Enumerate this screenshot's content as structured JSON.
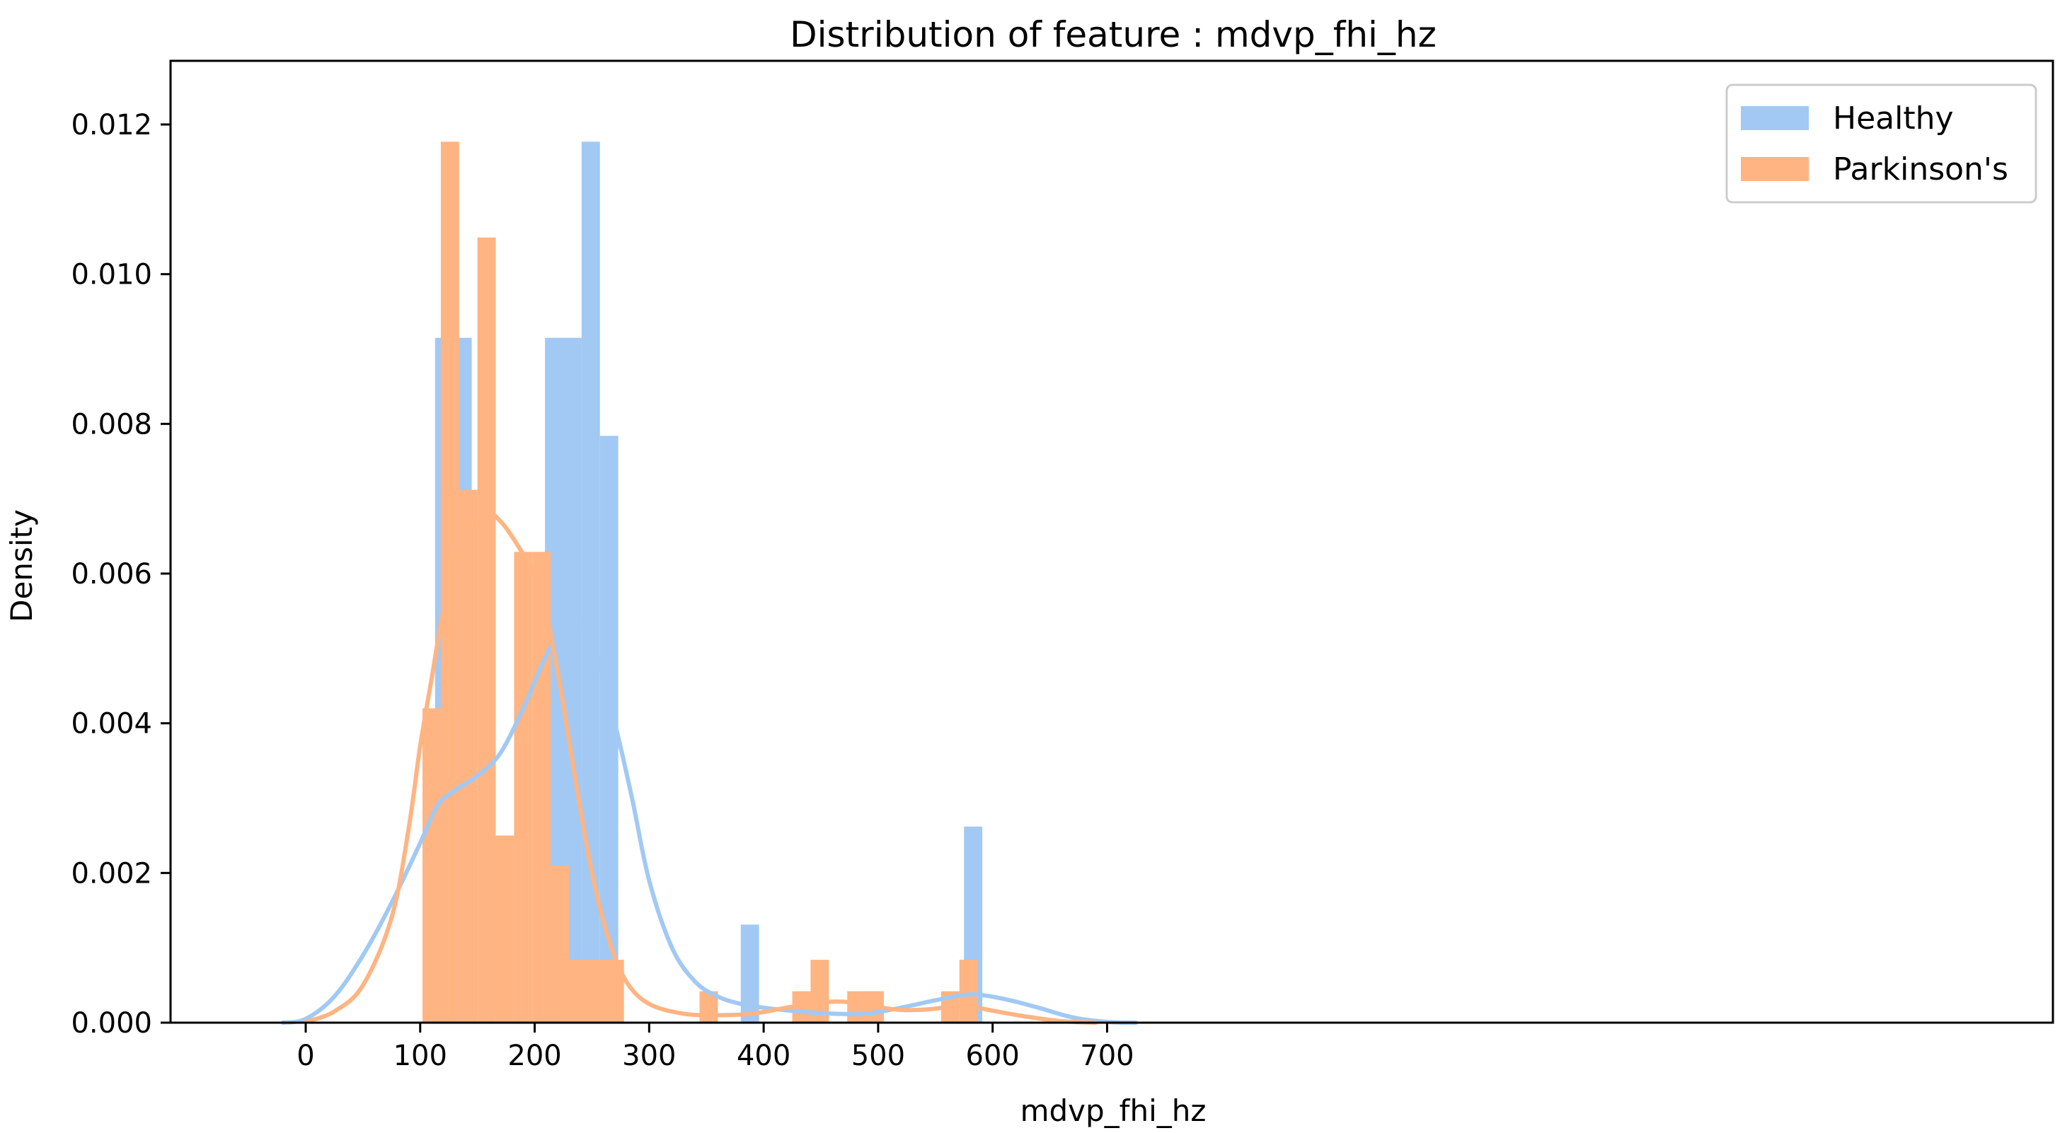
{
  "chart_data": {
    "type": "bar",
    "title": "Distribution of feature : mdvp_fhi_hz",
    "xlabel": "mdvp_fhi_hz",
    "ylabel": "Density",
    "xlim": [
      -60,
      760
    ],
    "ylim": [
      0,
      0.0121
    ],
    "xticks": [
      0,
      100,
      200,
      300,
      400,
      500,
      600,
      700
    ],
    "xtick_labels": [
      "0",
      "100",
      "200",
      "300",
      "400",
      "500",
      "600",
      "700"
    ],
    "yticks": [
      0,
      0.002,
      0.004,
      0.006,
      0.008,
      0.01,
      0.012
    ],
    "ytick_labels": [
      "0.000",
      "0.002",
      "0.004",
      "0.006",
      "0.008",
      "0.010",
      "0.012"
    ],
    "grid": false,
    "legend_position": "top-right",
    "series": [
      {
        "name": "Healthy",
        "color": "#a1c9f4",
        "bins": [
          {
            "x0": 113,
            "x1": 145,
            "y": 0.00915
          },
          {
            "x0": 145,
            "x1": 177,
            "y": 0.0
          },
          {
            "x0": 177,
            "x1": 209,
            "y": 0.0
          },
          {
            "x0": 209,
            "x1": 241,
            "y": 0.00915
          },
          {
            "x0": 241,
            "x1": 257,
            "y": 0.01177
          },
          {
            "x0": 257,
            "x1": 273,
            "y": 0.00784
          },
          {
            "x0": 273,
            "x1": 380,
            "y": 0.0
          },
          {
            "x0": 380,
            "x1": 396,
            "y": 0.00131
          },
          {
            "x0": 575,
            "x1": 591,
            "y": 0.00262
          }
        ],
        "kde": [
          [
            -20,
            0.0
          ],
          [
            0,
            5e-05
          ],
          [
            25,
            0.00035
          ],
          [
            50,
            0.0009
          ],
          [
            75,
            0.0016
          ],
          [
            100,
            0.0024
          ],
          [
            115,
            0.0029
          ],
          [
            130,
            0.0031
          ],
          [
            150,
            0.0033
          ],
          [
            170,
            0.0036
          ],
          [
            190,
            0.0042
          ],
          [
            210,
            0.0049
          ],
          [
            230,
            0.0054
          ],
          [
            250,
            0.0051
          ],
          [
            270,
            0.004
          ],
          [
            285,
            0.003
          ],
          [
            300,
            0.0019
          ],
          [
            320,
            0.001
          ],
          [
            340,
            0.00055
          ],
          [
            360,
            0.00035
          ],
          [
            380,
            0.00025
          ],
          [
            400,
            0.0002
          ],
          [
            430,
            0.00015
          ],
          [
            460,
            0.00012
          ],
          [
            490,
            0.00012
          ],
          [
            520,
            0.0002
          ],
          [
            550,
            0.0003
          ],
          [
            575,
            0.00037
          ],
          [
            590,
            0.00037
          ],
          [
            615,
            0.0003
          ],
          [
            640,
            0.0002
          ],
          [
            670,
            7e-05
          ],
          [
            700,
            1e-05
          ],
          [
            725,
            0.0
          ]
        ]
      },
      {
        "name": "Parkinson's",
        "color": "#ffb482",
        "bins": [
          {
            "x0": 102,
            "x1": 118,
            "y": 0.0042
          },
          {
            "x0": 118,
            "x1": 134,
            "y": 0.01177
          },
          {
            "x0": 134,
            "x1": 150,
            "y": 0.00712
          },
          {
            "x0": 150,
            "x1": 166,
            "y": 0.01049
          },
          {
            "x0": 166,
            "x1": 182,
            "y": 0.0025
          },
          {
            "x0": 182,
            "x1": 198,
            "y": 0.00629
          },
          {
            "x0": 198,
            "x1": 214,
            "y": 0.00629
          },
          {
            "x0": 214,
            "x1": 230,
            "y": 0.0021
          },
          {
            "x0": 230,
            "x1": 262,
            "y": 0.00084
          },
          {
            "x0": 262,
            "x1": 278,
            "y": 0.00084
          },
          {
            "x0": 344,
            "x1": 360,
            "y": 0.00042
          },
          {
            "x0": 425,
            "x1": 441,
            "y": 0.00042
          },
          {
            "x0": 441,
            "x1": 457,
            "y": 0.00084
          },
          {
            "x0": 473,
            "x1": 505,
            "y": 0.00042
          },
          {
            "x0": 555,
            "x1": 571,
            "y": 0.00042
          },
          {
            "x0": 571,
            "x1": 587,
            "y": 0.00084
          }
        ],
        "kde": [
          [
            0,
            1e-05
          ],
          [
            25,
            0.00015
          ],
          [
            50,
            0.0005
          ],
          [
            75,
            0.0014
          ],
          [
            90,
            0.0026
          ],
          [
            100,
            0.0037
          ],
          [
            110,
            0.0046
          ],
          [
            120,
            0.0055
          ],
          [
            130,
            0.0061
          ],
          [
            145,
            0.0066
          ],
          [
            160,
            0.0068
          ],
          [
            170,
            0.0067
          ],
          [
            180,
            0.0065
          ],
          [
            192,
            0.0062
          ],
          [
            205,
            0.0058
          ],
          [
            220,
            0.0047
          ],
          [
            235,
            0.0033
          ],
          [
            250,
            0.002
          ],
          [
            265,
            0.0011
          ],
          [
            280,
            0.00055
          ],
          [
            300,
            0.00025
          ],
          [
            330,
            0.00012
          ],
          [
            360,
            0.0001
          ],
          [
            390,
            0.00012
          ],
          [
            420,
            0.0002
          ],
          [
            450,
            0.00027
          ],
          [
            470,
            0.00028
          ],
          [
            490,
            0.00023
          ],
          [
            520,
            0.00017
          ],
          [
            545,
            0.00018
          ],
          [
            565,
            0.00022
          ],
          [
            580,
            0.00022
          ],
          [
            600,
            0.00016
          ],
          [
            630,
            8e-05
          ],
          [
            660,
            2e-05
          ],
          [
            690,
            0.0
          ]
        ]
      }
    ]
  }
}
